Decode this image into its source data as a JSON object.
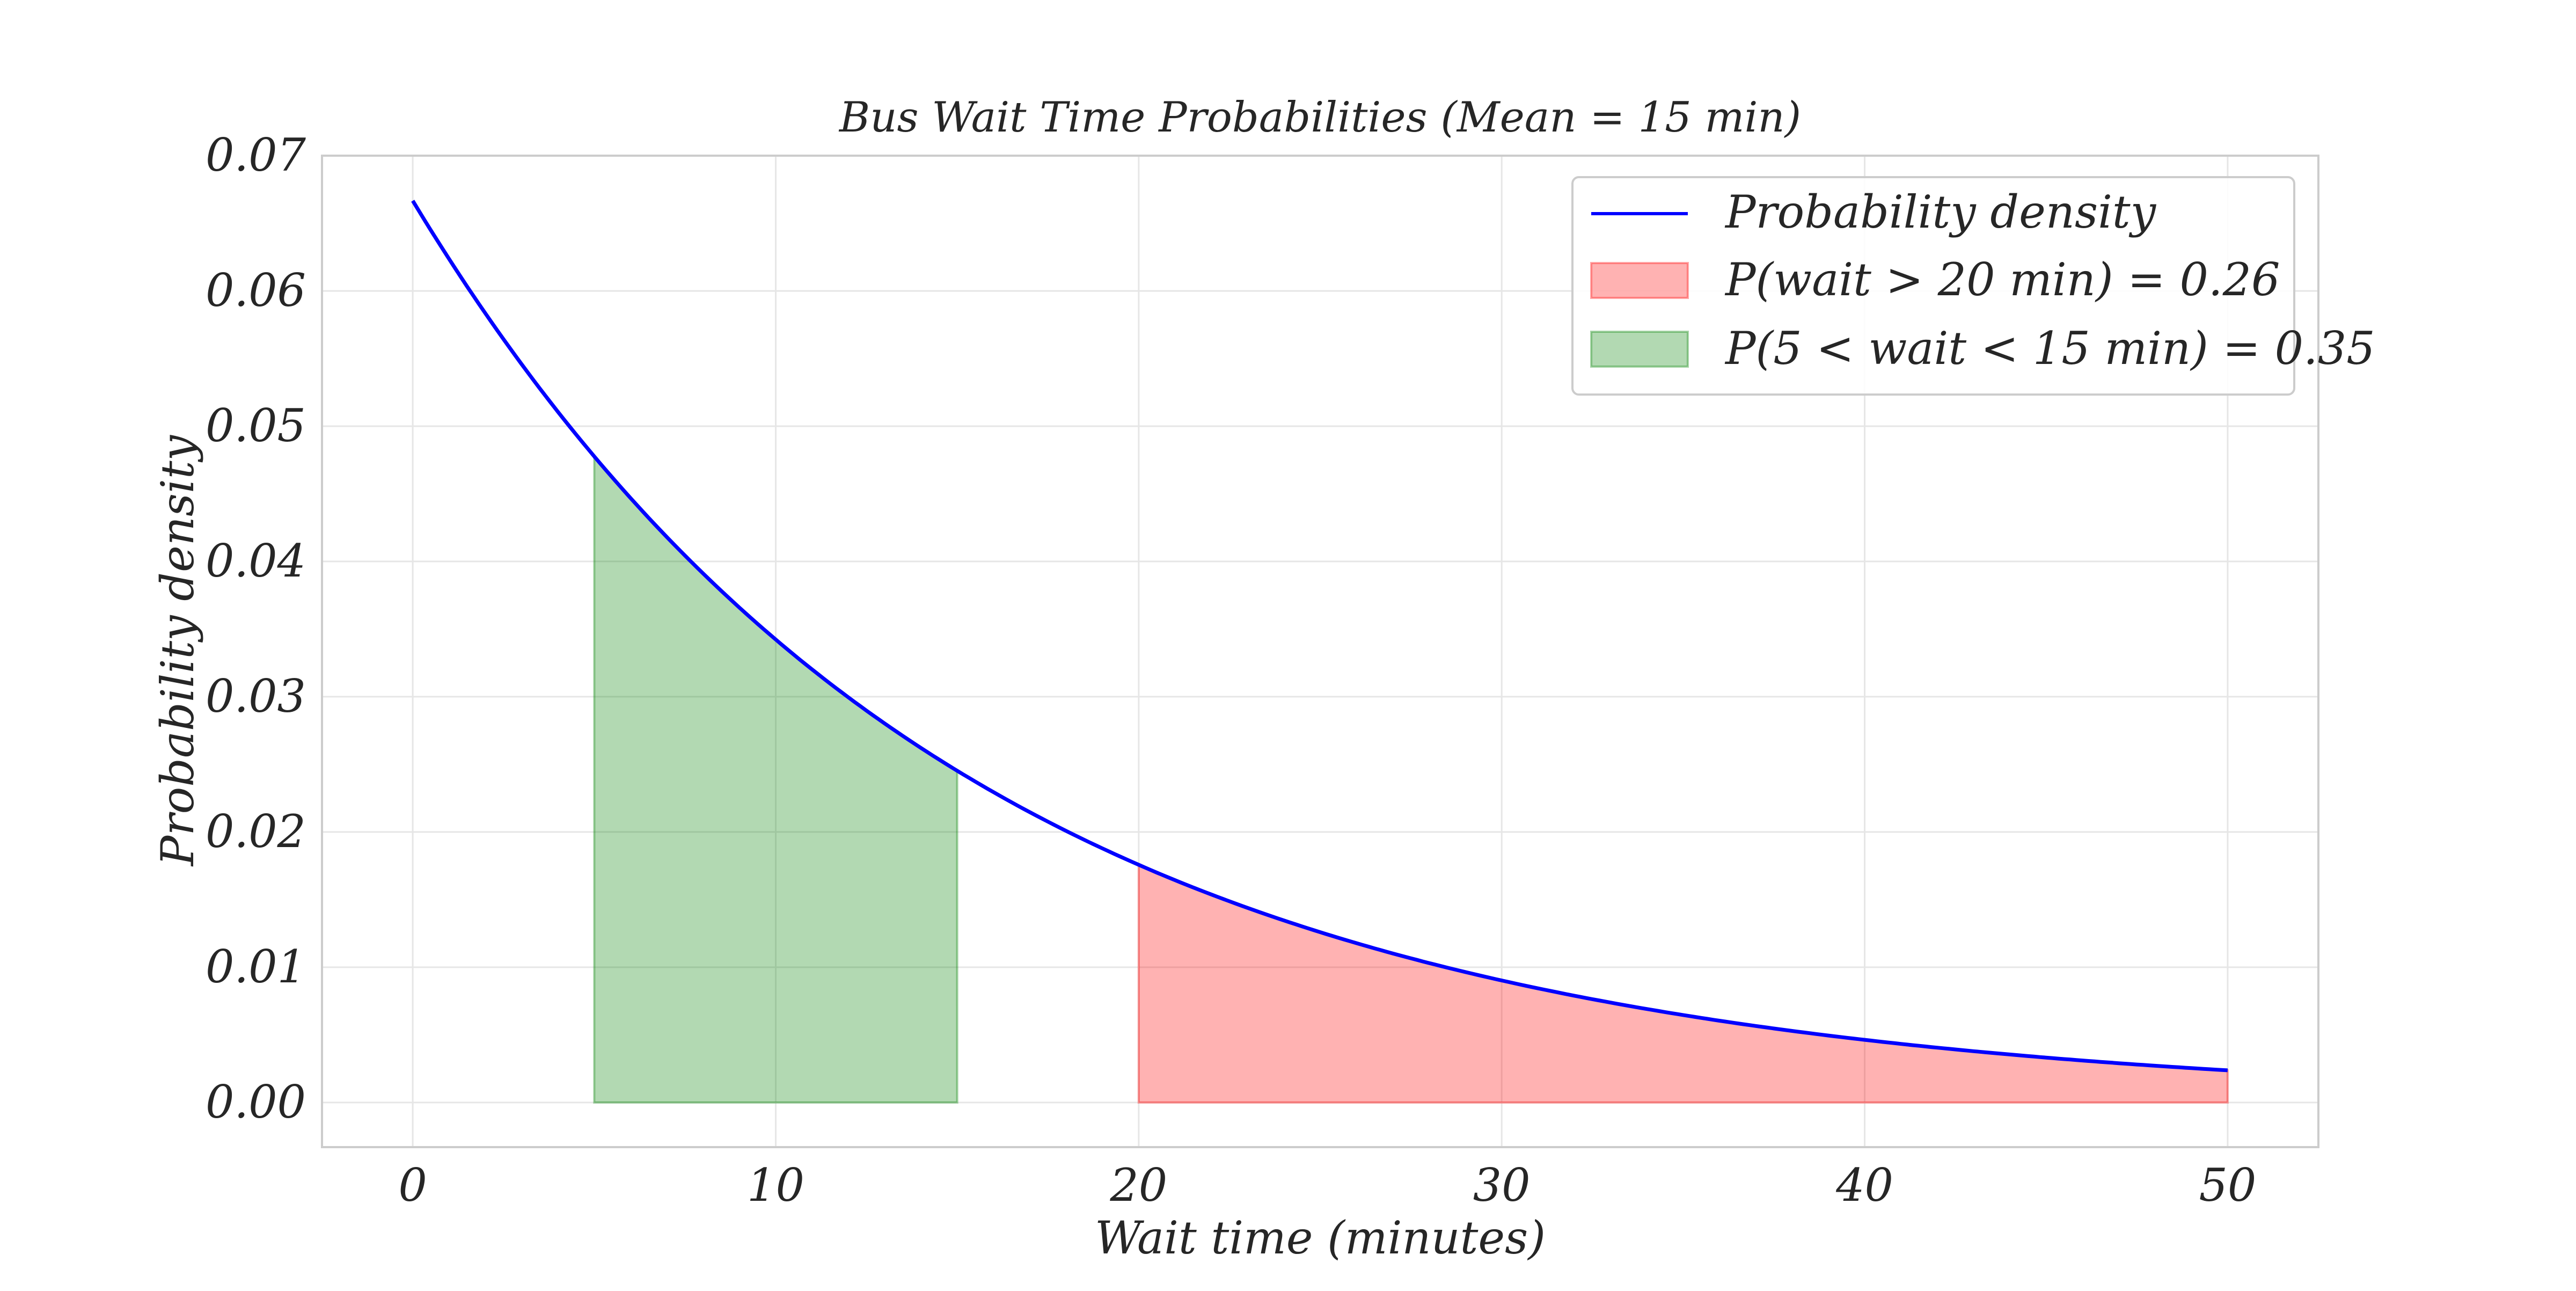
{
  "chart_data": {
    "type": "area",
    "title": "Bus Wait Time Probabilities (Mean = 15 min)",
    "xlabel": "Wait time (minutes)",
    "ylabel": "Probability density",
    "xlim": [
      -2.5,
      52.5
    ],
    "ylim": [
      -0.0033,
      0.07
    ],
    "x_ticks": [
      0,
      10,
      20,
      30,
      40,
      50
    ],
    "y_ticks": [
      0.0,
      0.01,
      0.02,
      0.03,
      0.04,
      0.05,
      0.06,
      0.07
    ],
    "x_tick_labels": [
      "0",
      "10",
      "20",
      "30",
      "40",
      "50"
    ],
    "y_tick_labels": [
      "0.00",
      "0.01",
      "0.02",
      "0.03",
      "0.04",
      "0.05",
      "0.06",
      "0.07"
    ],
    "grid": true,
    "legend_position": "top-right",
    "series": [
      {
        "name": "Probability density",
        "kind": "line",
        "color": "#0000ff",
        "mean": 15,
        "x_range": [
          0,
          50
        ],
        "x": [
          0,
          5,
          10,
          15,
          20,
          25,
          30,
          35,
          40,
          45,
          50
        ],
        "y": [
          0.0667,
          0.0478,
          0.0342,
          0.0245,
          0.0176,
          0.0126,
          0.009,
          0.0065,
          0.0046,
          0.0033,
          0.0024
        ]
      },
      {
        "name": "P(wait > 20 min) = 0.26",
        "kind": "fill",
        "color": "#ff0000",
        "opacity": 0.3,
        "x_range": [
          20,
          50
        ]
      },
      {
        "name": "P(5 < wait < 15 min) = 0.35",
        "kind": "fill",
        "color": "#008000",
        "opacity": 0.3,
        "x_range": [
          5,
          15
        ]
      }
    ]
  }
}
